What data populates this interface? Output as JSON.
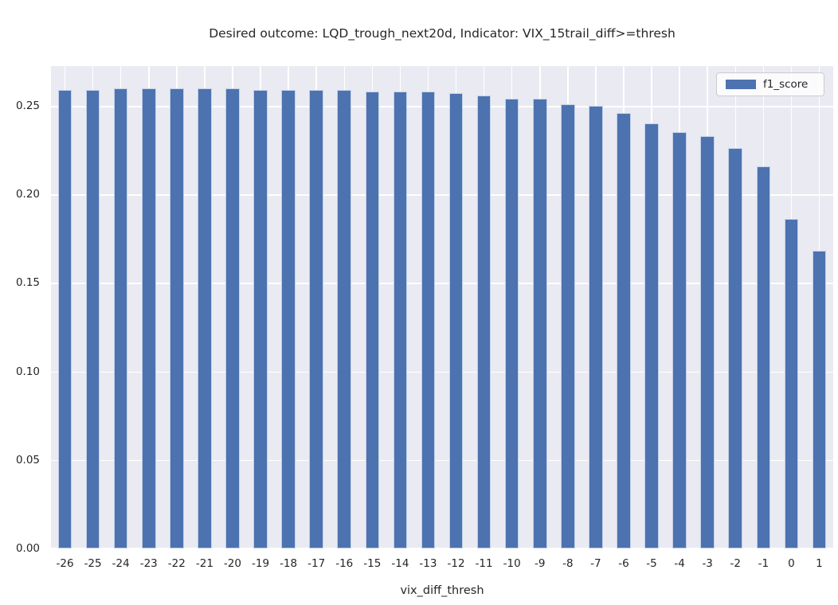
{
  "chart_data": {
    "type": "bar",
    "title": "Desired outcome: LQD_trough_next20d, Indicator: VIX_15trail_diff>=thresh",
    "xlabel": "vix_diff_thresh",
    "ylabel": "",
    "categories": [
      "-26",
      "-25",
      "-24",
      "-23",
      "-22",
      "-21",
      "-20",
      "-19",
      "-18",
      "-17",
      "-16",
      "-15",
      "-14",
      "-13",
      "-12",
      "-11",
      "-10",
      "-9",
      "-8",
      "-7",
      "-6",
      "-5",
      "-4",
      "-3",
      "-2",
      "-1",
      "0",
      "1"
    ],
    "series": [
      {
        "name": "f1_score",
        "values": [
          0.259,
          0.259,
          0.26,
          0.26,
          0.26,
          0.26,
          0.26,
          0.259,
          0.259,
          0.259,
          0.259,
          0.258,
          0.258,
          0.258,
          0.257,
          0.256,
          0.254,
          0.254,
          0.251,
          0.25,
          0.246,
          0.24,
          0.235,
          0.233,
          0.226,
          0.216,
          0.186,
          0.168
        ]
      }
    ],
    "ylim": [
      0,
      0.2725
    ],
    "yticks": [
      0.0,
      0.05,
      0.1,
      0.15,
      0.2,
      0.25
    ],
    "ytick_labels": [
      "0.00",
      "0.05",
      "0.10",
      "0.15",
      "0.20",
      "0.25"
    ],
    "grid": true,
    "legend": {
      "entries": [
        "f1_score"
      ],
      "position": "upper right"
    },
    "colors": {
      "bar": "#4c72b0",
      "plot_background": "#eaeaf2",
      "figure_background": "#ffffff",
      "grid": "#ffffff",
      "text": "#262626"
    }
  }
}
